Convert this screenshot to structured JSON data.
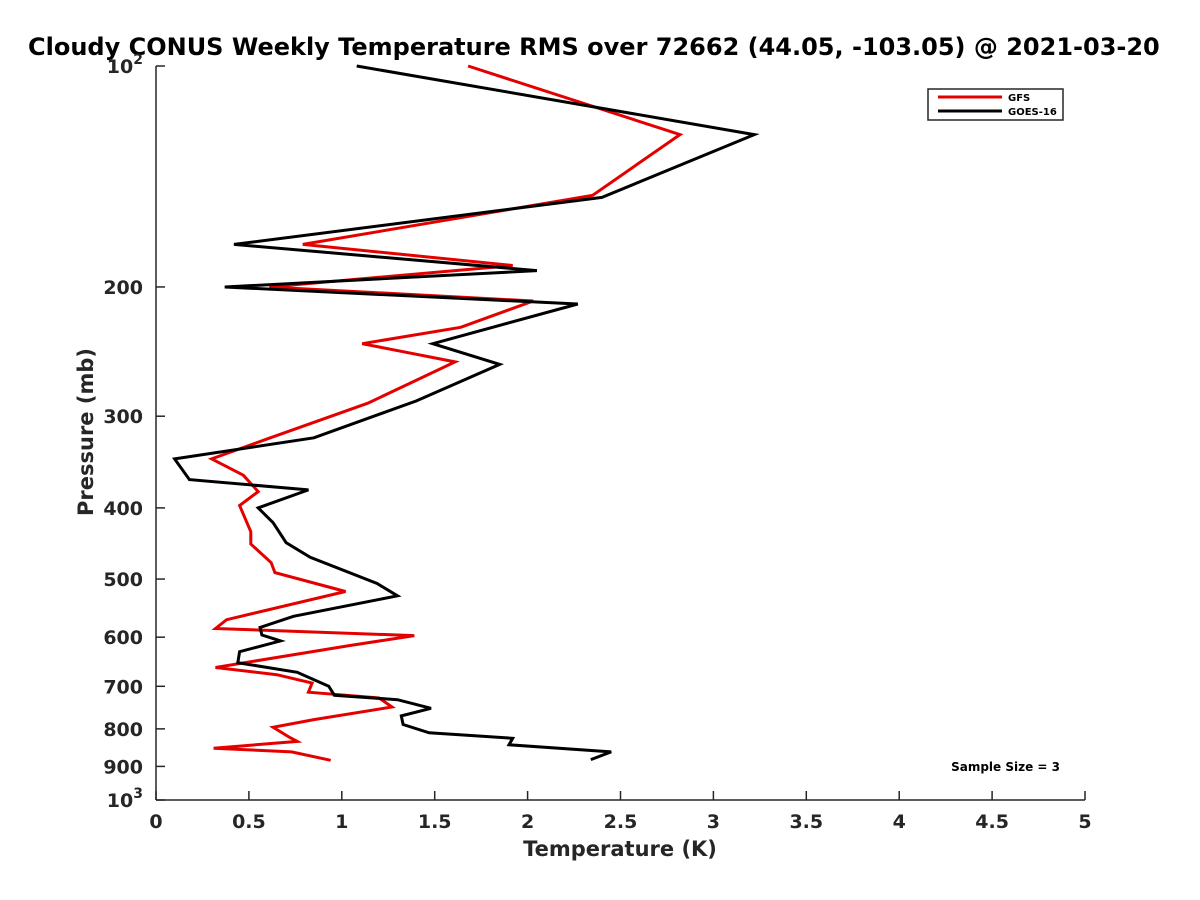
{
  "chart_data": {
    "type": "line",
    "title": "Cloudy CONUS Weekly Temperature RMS over 72662 (44.05, -103.05) @ 2021-03-20",
    "xlabel": "Temperature (K)",
    "ylabel": "Pressure (mb)",
    "xlim": [
      0,
      5
    ],
    "ylim": [
      100,
      1000
    ],
    "y_scale": "log",
    "y_reversed": true,
    "grid": false,
    "legend_position": "top-right",
    "x_ticks": [
      "0",
      "0.5",
      "1",
      "1.5",
      "2",
      "2.5",
      "3",
      "3.5",
      "4",
      "4.5",
      "5"
    ],
    "y_ticks": [
      {
        "value": 100,
        "base": "10",
        "exp": "2"
      },
      {
        "value": 200,
        "label": "200"
      },
      {
        "value": 300,
        "label": "300"
      },
      {
        "value": 400,
        "label": "400"
      },
      {
        "value": 500,
        "label": "500"
      },
      {
        "value": 600,
        "label": "600"
      },
      {
        "value": 700,
        "label": "700"
      },
      {
        "value": 800,
        "label": "800"
      },
      {
        "value": 900,
        "label": "900"
      },
      {
        "value": 1000,
        "base": "10",
        "exp": "3"
      }
    ],
    "series": [
      {
        "name": "GFS",
        "color": "#e50000",
        "points": [
          [
            1.68,
            100
          ],
          [
            2.82,
            124
          ],
          [
            2.35,
            150
          ],
          [
            0.79,
            175
          ],
          [
            1.92,
            187
          ],
          [
            0.61,
            200
          ],
          [
            2.03,
            209
          ],
          [
            1.64,
            227
          ],
          [
            1.11,
            239
          ],
          [
            1.61,
            253
          ],
          [
            1.14,
            288
          ],
          [
            0.6,
            322
          ],
          [
            0.3,
            343
          ],
          [
            0.47,
            361
          ],
          [
            0.55,
            380
          ],
          [
            0.45,
            397
          ],
          [
            0.51,
            431
          ],
          [
            0.51,
            448
          ],
          [
            0.62,
            475
          ],
          [
            0.64,
            490
          ],
          [
            1.02,
            520
          ],
          [
            0.38,
            568
          ],
          [
            0.32,
            584
          ],
          [
            1.39,
            597
          ],
          [
            1.04,
            616
          ],
          [
            0.32,
            660
          ],
          [
            0.65,
            675
          ],
          [
            0.84,
            693
          ],
          [
            0.82,
            713
          ],
          [
            1.2,
            726
          ],
          [
            1.27,
            747
          ],
          [
            0.85,
            777
          ],
          [
            0.63,
            796
          ],
          [
            0.72,
            822
          ],
          [
            0.76,
            832
          ],
          [
            0.31,
            850
          ],
          [
            0.73,
            860
          ],
          [
            0.94,
            883
          ]
        ]
      },
      {
        "name": "GOES-16",
        "color": "#000000",
        "points": [
          [
            1.08,
            100
          ],
          [
            3.22,
            124
          ],
          [
            2.4,
            151
          ],
          [
            0.42,
            175
          ],
          [
            2.05,
            190
          ],
          [
            0.37,
            200
          ],
          [
            2.27,
            211
          ],
          [
            1.49,
            239
          ],
          [
            1.85,
            255
          ],
          [
            1.4,
            286
          ],
          [
            0.85,
            321
          ],
          [
            0.1,
            343
          ],
          [
            0.18,
            366
          ],
          [
            0.82,
            378
          ],
          [
            0.55,
            400
          ],
          [
            0.63,
            419
          ],
          [
            0.7,
            446
          ],
          [
            0.83,
            467
          ],
          [
            1.19,
            507
          ],
          [
            1.3,
            527
          ],
          [
            0.74,
            562
          ],
          [
            0.56,
            582
          ],
          [
            0.57,
            596
          ],
          [
            0.67,
            607
          ],
          [
            0.45,
            628
          ],
          [
            0.44,
            650
          ],
          [
            0.76,
            670
          ],
          [
            0.93,
            700
          ],
          [
            0.96,
            720
          ],
          [
            1.3,
            730
          ],
          [
            1.48,
            750
          ],
          [
            1.32,
            768
          ],
          [
            1.33,
            789
          ],
          [
            1.47,
            810
          ],
          [
            1.92,
            824
          ],
          [
            1.9,
            841
          ],
          [
            2.45,
            860
          ],
          [
            2.34,
            881
          ]
        ]
      }
    ],
    "annotation": "Sample Size = 3"
  }
}
